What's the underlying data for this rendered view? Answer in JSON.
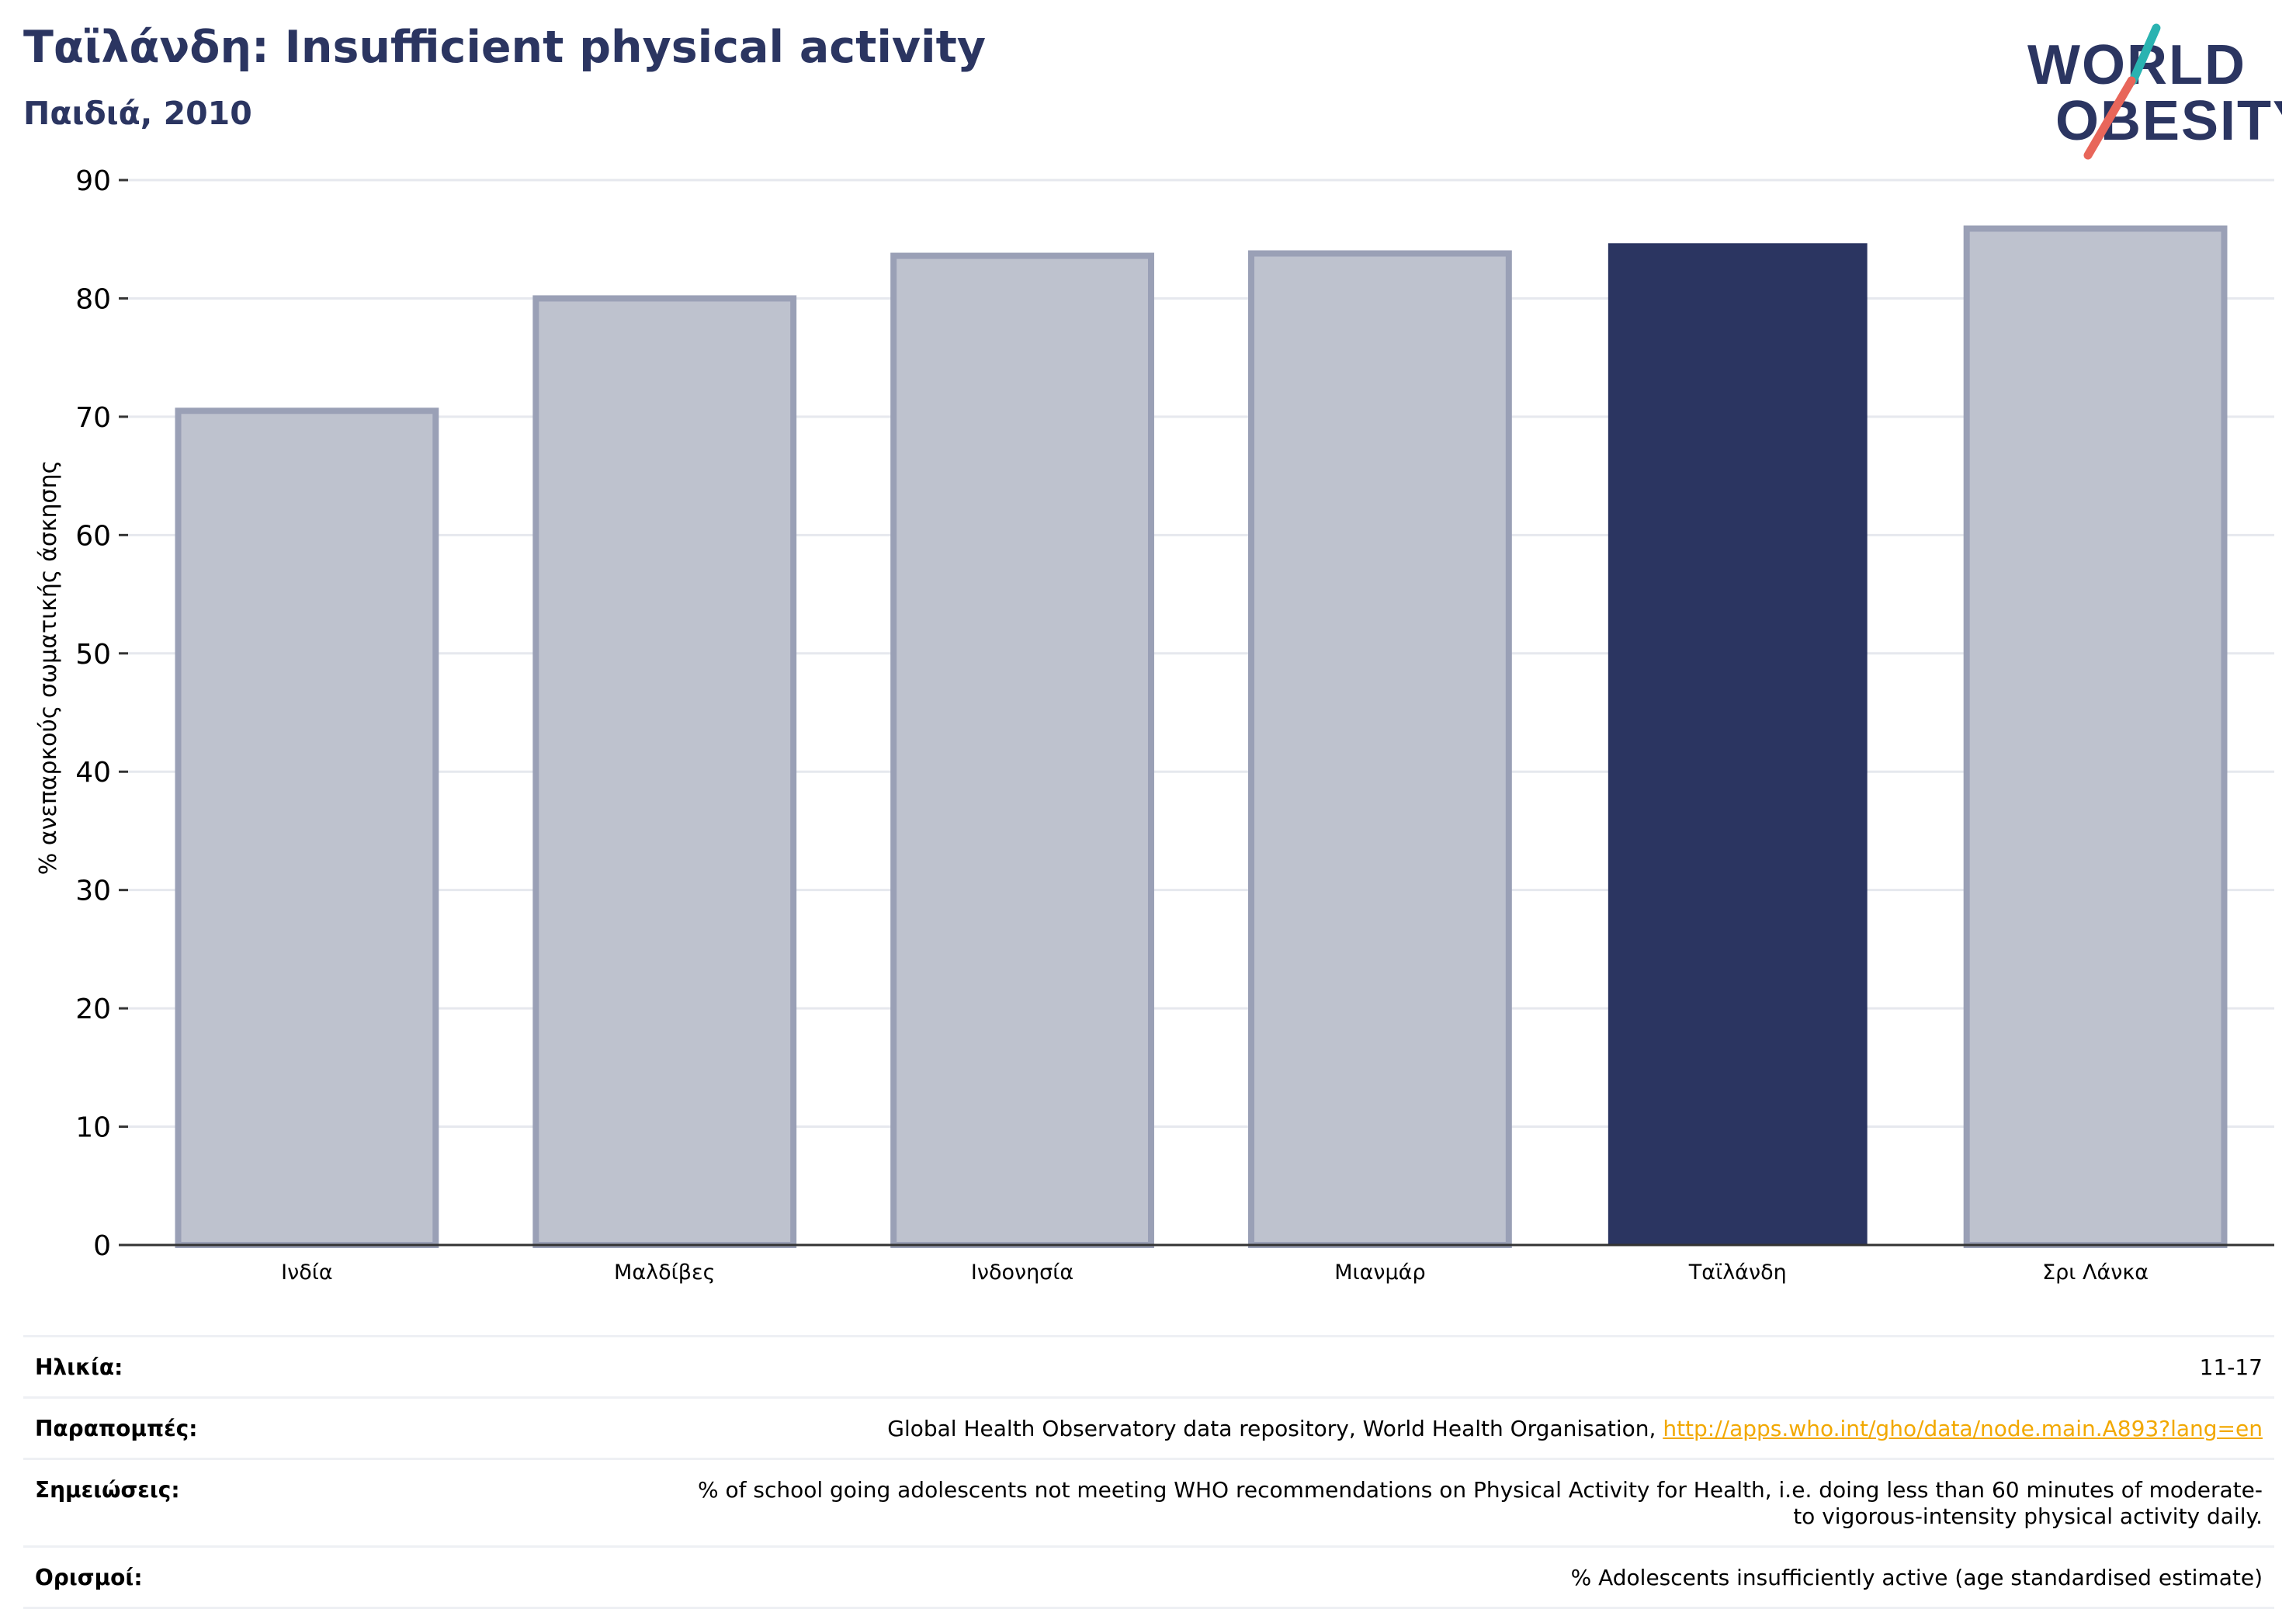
{
  "header": {
    "title": "Ταϊλάνδη: Insufficient physical activity",
    "subtitle": "Παιδιά, 2010"
  },
  "logo": {
    "line1": "WORLD",
    "line2": "OBESITY",
    "icon": "world-obesity-logo"
  },
  "colors": {
    "highlight_bar": "#2b3561",
    "other_bar": "#bec2ce",
    "other_bar_border": "#9aa0b6",
    "grid": "#e6e8ee",
    "accent_teal": "#2ab3b1",
    "accent_red": "#e8665a"
  },
  "chart_data": {
    "type": "bar",
    "categories": [
      "Ινδία",
      "Μαλδίβες",
      "Ινδονησία",
      "Μιανμάρ",
      "Ταϊλάνδη",
      "Σρι Λάνκα"
    ],
    "values": [
      70.5,
      80.0,
      83.6,
      83.8,
      84.6,
      85.9
    ],
    "highlight": "Ταϊλάνδη",
    "ylabel": "% ανεπαρκούς σωματικής άσκησης",
    "xlabel": "",
    "ylim": [
      0,
      90
    ],
    "yticks": [
      0,
      10,
      20,
      30,
      40,
      50,
      60,
      70,
      80,
      90
    ],
    "grid": true
  },
  "meta": {
    "age_label": "Ηλικία:",
    "age_value": "11-17",
    "refs_label": "Παραπομπές:",
    "refs_value": "Global Health Observatory data repository, World Health Organisation, ",
    "refs_link": "http://apps.who.int/gho/data/node.main.A893?lang=en",
    "notes_label": "Σημειώσεις:",
    "notes_value": "% of school going adolescents not meeting WHO recommendations on Physical Activity for Health, i.e. doing less than 60 minutes of moderate- to vigorous-intensity physical activity daily.",
    "defs_label": "Ορισμοί:",
    "defs_value": "% Adolescents insufficiently active (age standardised estimate)"
  }
}
